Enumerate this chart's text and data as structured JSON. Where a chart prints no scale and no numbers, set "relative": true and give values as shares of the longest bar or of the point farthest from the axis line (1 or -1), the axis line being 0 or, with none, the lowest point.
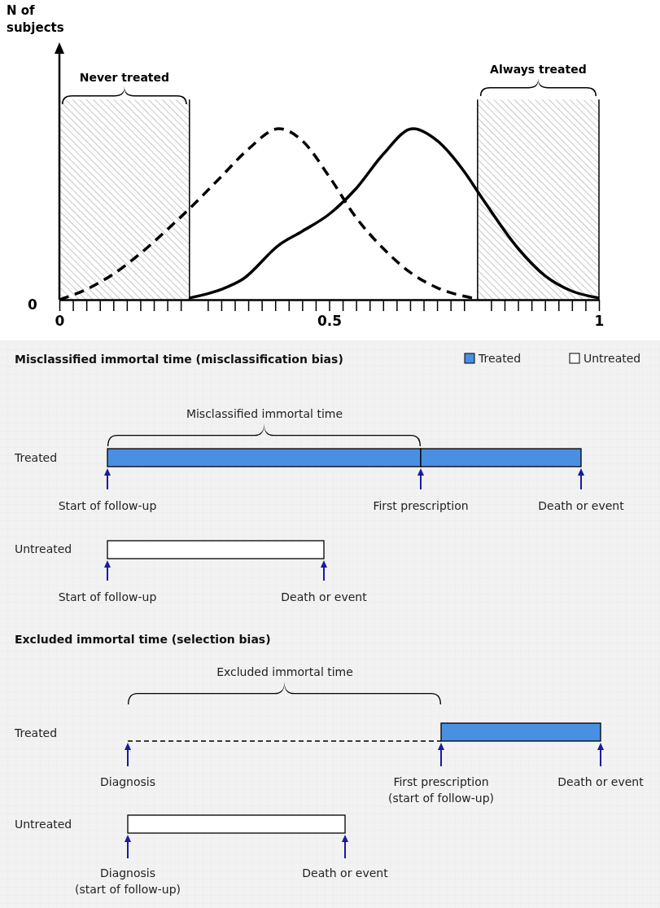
{
  "chart_data": [
    {
      "type": "line",
      "ylabel": "N of subjects",
      "relative": true,
      "xlim": [
        0,
        1
      ],
      "xticks": [
        {
          "value": 0,
          "label": "0"
        },
        {
          "value": 0.025,
          "label": null
        },
        {
          "value": 0.05,
          "label": null
        },
        {
          "value": 0.075,
          "label": null
        },
        {
          "value": 0.1,
          "label": null
        },
        {
          "value": 0.125,
          "label": null
        },
        {
          "value": 0.15,
          "label": null
        },
        {
          "value": 0.175,
          "label": null
        },
        {
          "value": 0.2,
          "label": null
        },
        {
          "value": 0.225,
          "label": null
        },
        {
          "value": 0.275,
          "label": null
        },
        {
          "value": 0.3,
          "label": null
        },
        {
          "value": 0.325,
          "label": null
        },
        {
          "value": 0.35,
          "label": null
        },
        {
          "value": 0.375,
          "label": null
        },
        {
          "value": 0.4,
          "label": null
        },
        {
          "value": 0.425,
          "label": null
        },
        {
          "value": 0.45,
          "label": null
        },
        {
          "value": 0.475,
          "label": null
        },
        {
          "value": 0.5,
          "label": "0.5"
        },
        {
          "value": 0.525,
          "label": null
        },
        {
          "value": 0.55,
          "label": null
        },
        {
          "value": 0.575,
          "label": null
        },
        {
          "value": 0.6,
          "label": null
        },
        {
          "value": 0.625,
          "label": null
        },
        {
          "value": 0.65,
          "label": null
        },
        {
          "value": 0.675,
          "label": null
        },
        {
          "value": 0.7,
          "label": null
        },
        {
          "value": 0.725,
          "label": null
        },
        {
          "value": 0.75,
          "label": null
        },
        {
          "value": 0.8,
          "label": null
        },
        {
          "value": 0.825,
          "label": null
        },
        {
          "value": 0.85,
          "label": null
        },
        {
          "value": 0.875,
          "label": null
        },
        {
          "value": 0.9,
          "label": null
        },
        {
          "value": 0.925,
          "label": null
        },
        {
          "value": 0.95,
          "label": null
        },
        {
          "value": 0.975,
          "label": null
        },
        {
          "value": 1,
          "label": "1"
        }
      ],
      "series": [
        {
          "color": "#000000",
          "line_style": "dashed",
          "x": [
            0,
            0.05,
            0.1,
            0.15,
            0.2,
            0.25,
            0.3,
            0.35,
            0.407,
            0.45,
            0.5,
            0.55,
            0.6,
            0.65,
            0.7,
            0.765
          ],
          "values": [
            0,
            0.06,
            0.15,
            0.27,
            0.41,
            0.56,
            0.72,
            0.88,
            1,
            0.93,
            0.72,
            0.48,
            0.3,
            0.16,
            0.07,
            0.01
          ]
        },
        {
          "color": "#000000",
          "line_style": "solid",
          "x": [
            0.241,
            0.3,
            0.34,
            0.407,
            0.45,
            0.5,
            0.55,
            0.6,
            0.655,
            0.7,
            0.75,
            0.78,
            0.85,
            0.9,
            0.95,
            1
          ],
          "values": [
            0.01,
            0.06,
            0.12,
            0.32,
            0.4,
            0.5,
            0.65,
            0.85,
            1,
            0.93,
            0.75,
            0.61,
            0.3,
            0.14,
            0.05,
            0.01
          ]
        }
      ],
      "bands": [
        {
          "axis": "x",
          "from": 0,
          "to": 0.241,
          "label": "Never treated"
        },
        {
          "axis": "x",
          "from": 0.775,
          "to": 1,
          "label": "Always treated"
        }
      ],
      "annotations": [
        "0"
      ]
    },
    {
      "type": "other",
      "title": "Misclassified immortal time (misclassification bias)",
      "annotations": [
        "Treated",
        "Untreated",
        "Misclassified immortal time",
        "Treated",
        "Start of follow-up",
        "First prescription",
        "Death or event",
        "Untreated",
        "Start of follow-up",
        "Death or event"
      ]
    },
    {
      "type": "other",
      "title": "Excluded immortal time (selection bias)",
      "annotations": [
        "Excluded immortal time",
        "Treated",
        "Diagnosis",
        "First prescription\n(start of follow-up)",
        "Death or event",
        "Untreated",
        "Diagnosis\n(start of follow-up)",
        "Death or event"
      ]
    }
  ]
}
